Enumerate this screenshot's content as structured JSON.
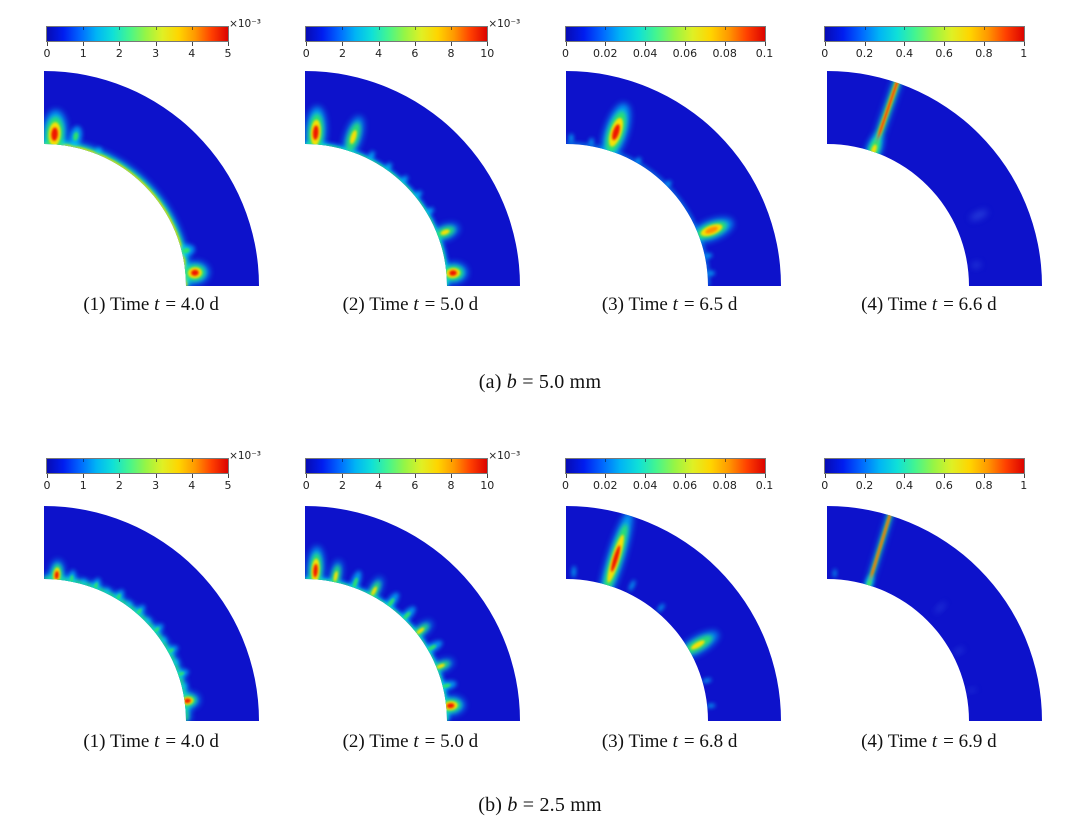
{
  "page": {
    "background": "#ffffff"
  },
  "colors": {
    "body": "#0d12cb",
    "cyan": "#00d2ff",
    "green": "#30e860",
    "yellow": "#ffe000",
    "orange": "#ff9000",
    "red": "#f01800",
    "faint": "#3d64e8",
    "colorbar_gradient": [
      "#070bb4",
      "#001df0",
      "#0066ff",
      "#00b4f5",
      "#0fe0d8",
      "#45f58e",
      "#96f545",
      "#dff025",
      "#ffd500",
      "#ff9800",
      "#ff4000",
      "#dc0300"
    ]
  },
  "figure": {
    "sections": [
      {
        "id": "a",
        "label": {
          "index": "(a)",
          "var": "b",
          "post": "= 5.0 mm"
        },
        "panels": [
          {
            "colorbar": {
              "ticks": [
                "0",
                "1",
                "2",
                "3",
                "4",
                "5"
              ],
              "exponent": "×10⁻³"
            },
            "caption": {
              "index": "(1)",
              "pre": "Time",
              "var": "t",
              "post": "= 4.0 d"
            },
            "field": {
              "rim": "strong",
              "features": [
                {
                  "t": 86,
                  "r": 0.14,
                  "l": 24,
                  "w": 12,
                  "p": "red"
                },
                {
                  "t": 78,
                  "r": 0.15,
                  "l": 14,
                  "w": 8,
                  "p": "green"
                },
                {
                  "t": 68,
                  "r": 0.05,
                  "l": 10,
                  "w": 7,
                  "p": "cyan"
                },
                {
                  "t": 14,
                  "r": 0.06,
                  "l": 12,
                  "w": 8,
                  "p": "green"
                },
                {
                  "t": 5,
                  "r": 0.13,
                  "l": 14,
                  "w": 11,
                  "p": "red"
                }
              ]
            }
          },
          {
            "colorbar": {
              "ticks": [
                "0",
                "2",
                "4",
                "6",
                "8",
                "10"
              ],
              "exponent": "×10⁻³"
            },
            "caption": {
              "index": "(2)",
              "pre": "Time",
              "var": "t",
              "post": "= 5.0 d"
            },
            "field": {
              "rim": "thin",
              "features": [
                {
                  "t": 86,
                  "r": 0.16,
                  "l": 26,
                  "w": 10,
                  "p": "red"
                },
                {
                  "t": 72,
                  "r": 0.2,
                  "l": 24,
                  "w": 9,
                  "p": "yellow"
                },
                {
                  "t": 63,
                  "r": 0.06,
                  "l": 13,
                  "w": 7,
                  "p": "cyan"
                },
                {
                  "t": 55,
                  "r": 0.05,
                  "l": 12,
                  "w": 7,
                  "p": "cyan"
                },
                {
                  "t": 47,
                  "r": 0.05,
                  "l": 12,
                  "w": 7,
                  "p": "cyan"
                },
                {
                  "t": 39,
                  "r": 0.05,
                  "l": 12,
                  "w": 7,
                  "p": "cyan"
                },
                {
                  "t": 31,
                  "r": 0.05,
                  "l": 12,
                  "w": 7,
                  "p": "cyan"
                },
                {
                  "t": 21,
                  "r": 0.11,
                  "l": 16,
                  "w": 8,
                  "p": "yellow"
                },
                {
                  "t": 5,
                  "r": 0.09,
                  "l": 14,
                  "w": 10,
                  "p": "red"
                }
              ]
            }
          },
          {
            "colorbar": {
              "ticks": [
                "0",
                "0.02",
                "0.04",
                "0.06",
                "0.08",
                "0.1"
              ]
            },
            "caption": {
              "index": "(3)",
              "pre": "Time",
              "var": "t",
              "post": "= 6.5 d"
            },
            "field": {
              "rim": "faint",
              "features": [
                {
                  "t": 72,
                  "r": 0.27,
                  "l": 30,
                  "w": 11,
                  "p": "red"
                },
                {
                  "t": 88,
                  "r": 0.08,
                  "l": 12,
                  "w": 6,
                  "p": "cyan"
                },
                {
                  "t": 80,
                  "r": 0.06,
                  "l": 10,
                  "w": 6,
                  "p": "cyan"
                },
                {
                  "t": 60,
                  "r": 0.04,
                  "l": 9,
                  "w": 6,
                  "p": "cyan"
                },
                {
                  "t": 45,
                  "r": 0.04,
                  "l": 9,
                  "w": 6,
                  "p": "cyan"
                },
                {
                  "t": 21,
                  "r": 0.19,
                  "l": 24,
                  "w": 10,
                  "p": "orange"
                },
                {
                  "t": 12,
                  "r": 0.05,
                  "l": 10,
                  "w": 6,
                  "p": "cyan"
                },
                {
                  "t": 5,
                  "r": 0.05,
                  "l": 10,
                  "w": 6,
                  "p": "cyan"
                }
              ]
            }
          },
          {
            "colorbar": {
              "ticks": [
                "0",
                "0.2",
                "0.4",
                "0.6",
                "0.8",
                "1"
              ]
            },
            "caption": {
              "index": "(4)",
              "pre": "Time",
              "var": "t",
              "post": "= 6.6 d"
            },
            "field": {
              "rim": "none",
              "features": [
                {
                  "t": 71,
                  "full": true,
                  "k": 1,
                  "p": "red"
                },
                {
                  "t": 71,
                  "r": 0.03,
                  "l": 18,
                  "w": 8,
                  "p": "yellow"
                },
                {
                  "t": 25,
                  "r": 0.35,
                  "l": 24,
                  "w": 9,
                  "p": "faint"
                },
                {
                  "t": 8,
                  "r": 0.12,
                  "l": 12,
                  "w": 7,
                  "p": "faint"
                }
              ]
            }
          }
        ]
      },
      {
        "id": "b",
        "label": {
          "index": "(b)",
          "var": "b",
          "post": "= 2.5 mm"
        },
        "panels": [
          {
            "colorbar": {
              "ticks": [
                "0",
                "1",
                "2",
                "3",
                "4",
                "5"
              ],
              "exponent": "×10⁻³"
            },
            "caption": {
              "index": "(1)",
              "pre": "Time",
              "var": "t",
              "post": "= 4.0 d"
            },
            "field": {
              "rim": "green",
              "features": [
                {
                  "t": 85,
                  "r": 0.06,
                  "l": 15,
                  "w": 7,
                  "p": "red"
                },
                {
                  "t": 79,
                  "r": 0.04,
                  "l": 12,
                  "w": 5,
                  "p": "green"
                },
                {
                  "t": 74,
                  "r": 0.03,
                  "l": 10,
                  "w": 5,
                  "p": "cyan"
                },
                {
                  "t": 69,
                  "r": 0.04,
                  "l": 11,
                  "w": 5,
                  "p": "green"
                },
                {
                  "t": 64,
                  "r": 0.03,
                  "l": 10,
                  "w": 5,
                  "p": "cyan"
                },
                {
                  "t": 59,
                  "r": 0.04,
                  "l": 11,
                  "w": 5,
                  "p": "green"
                },
                {
                  "t": 54,
                  "r": 0.03,
                  "l": 10,
                  "w": 5,
                  "p": "cyan"
                },
                {
                  "t": 49,
                  "r": 0.04,
                  "l": 11,
                  "w": 5,
                  "p": "green"
                },
                {
                  "t": 44,
                  "r": 0.03,
                  "l": 10,
                  "w": 5,
                  "p": "cyan"
                },
                {
                  "t": 39,
                  "r": 0.04,
                  "l": 11,
                  "w": 5,
                  "p": "green"
                },
                {
                  "t": 34,
                  "r": 0.03,
                  "l": 10,
                  "w": 5,
                  "p": "cyan"
                },
                {
                  "t": 29,
                  "r": 0.04,
                  "l": 11,
                  "w": 5,
                  "p": "green"
                },
                {
                  "t": 24,
                  "r": 0.03,
                  "l": 10,
                  "w": 5,
                  "p": "cyan"
                },
                {
                  "t": 19,
                  "r": 0.04,
                  "l": 11,
                  "w": 5,
                  "p": "green"
                },
                {
                  "t": 14,
                  "r": 0.03,
                  "l": 10,
                  "w": 5,
                  "p": "cyan"
                },
                {
                  "t": 8,
                  "r": 0.04,
                  "l": 12,
                  "w": 8,
                  "p": "red"
                }
              ]
            }
          },
          {
            "colorbar": {
              "ticks": [
                "0",
                "2",
                "4",
                "6",
                "8",
                "10"
              ],
              "exponent": "×10⁻³"
            },
            "caption": {
              "index": "(2)",
              "pre": "Time",
              "var": "t",
              "post": "= 5.0 d"
            },
            "field": {
              "rim": "thin",
              "features": [
                {
                  "t": 86,
                  "r": 0.12,
                  "l": 24,
                  "w": 8,
                  "p": "red"
                },
                {
                  "t": 78,
                  "r": 0.08,
                  "l": 18,
                  "w": 6,
                  "p": "yellow"
                },
                {
                  "t": 70,
                  "r": 0.07,
                  "l": 17,
                  "w": 6,
                  "p": "green"
                },
                {
                  "t": 62,
                  "r": 0.07,
                  "l": 17,
                  "w": 6,
                  "p": "yellow"
                },
                {
                  "t": 54,
                  "r": 0.06,
                  "l": 16,
                  "w": 6,
                  "p": "green"
                },
                {
                  "t": 46,
                  "r": 0.06,
                  "l": 16,
                  "w": 6,
                  "p": "green"
                },
                {
                  "t": 38,
                  "r": 0.06,
                  "l": 16,
                  "w": 6,
                  "p": "yellow"
                },
                {
                  "t": 30,
                  "r": 0.06,
                  "l": 16,
                  "w": 6,
                  "p": "green"
                },
                {
                  "t": 22,
                  "r": 0.06,
                  "l": 15,
                  "w": 6,
                  "p": "yellow"
                },
                {
                  "t": 14,
                  "r": 0.05,
                  "l": 14,
                  "w": 6,
                  "p": "green"
                },
                {
                  "t": 6,
                  "r": 0.06,
                  "l": 14,
                  "w": 9,
                  "p": "red"
                }
              ]
            }
          },
          {
            "colorbar": {
              "ticks": [
                "0",
                "0.02",
                "0.04",
                "0.06",
                "0.08",
                "0.1"
              ]
            },
            "caption": {
              "index": "(3)",
              "pre": "Time",
              "var": "t",
              "post": "= 6.8 d"
            },
            "field": {
              "rim": "none",
              "features": [
                {
                  "t": 73,
                  "r": 0.38,
                  "l": 50,
                  "w": 8,
                  "p": "red"
                },
                {
                  "t": 87,
                  "r": 0.1,
                  "l": 16,
                  "w": 5,
                  "p": "cyan"
                },
                {
                  "t": 64,
                  "r": 0.12,
                  "l": 16,
                  "w": 5,
                  "p": "cyan"
                },
                {
                  "t": 50,
                  "r": 0.08,
                  "l": 13,
                  "w": 5,
                  "p": "cyan"
                },
                {
                  "t": 30,
                  "r": 0.14,
                  "l": 26,
                  "w": 9,
                  "p": "yellow"
                },
                {
                  "t": 16,
                  "r": 0.06,
                  "l": 13,
                  "w": 5,
                  "p": "cyan"
                },
                {
                  "t": 6,
                  "r": 0.05,
                  "l": 12,
                  "w": 5,
                  "p": "cyan"
                }
              ]
            }
          },
          {
            "colorbar": {
              "ticks": [
                "0",
                "0.2",
                "0.4",
                "0.6",
                "0.8",
                "1"
              ]
            },
            "caption": {
              "index": "(4)",
              "pre": "Time",
              "var": "t",
              "post": "= 6.9 d"
            },
            "field": {
              "rim": "none",
              "features": [
                {
                  "t": 73,
                  "full": true,
                  "k": 0.62,
                  "p": "red"
                },
                {
                  "t": 73,
                  "r": 0.02,
                  "l": 12,
                  "w": 5,
                  "p": "green"
                },
                {
                  "t": 87,
                  "r": 0.08,
                  "l": 12,
                  "w": 4,
                  "p": "cyan"
                },
                {
                  "t": 45,
                  "r": 0.25,
                  "l": 18,
                  "w": 5,
                  "p": "faint"
                },
                {
                  "t": 28,
                  "r": 0.1,
                  "l": 14,
                  "w": 5,
                  "p": "faint"
                },
                {
                  "t": 12,
                  "r": 0.08,
                  "l": 12,
                  "w": 4,
                  "p": "faint"
                }
              ]
            }
          }
        ]
      }
    ]
  },
  "chart_data": {
    "type": "heatmap",
    "geometry": "quarter-annulus",
    "colormap": "jet",
    "legend_position": "top",
    "sections": [
      {
        "label": "(a) b = 5.0 mm",
        "b_mm": 5.0,
        "panels": [
          {
            "time_d": 4.0,
            "colorbar_range": [
              0,
              0.005
            ],
            "colorbar_ticks": [
              0,
              1,
              2,
              3,
              4,
              5
            ],
            "tick_scale": "1e-3"
          },
          {
            "time_d": 5.0,
            "colorbar_range": [
              0,
              0.01
            ],
            "colorbar_ticks": [
              0,
              2,
              4,
              6,
              8,
              10
            ],
            "tick_scale": "1e-3"
          },
          {
            "time_d": 6.5,
            "colorbar_range": [
              0,
              0.1
            ],
            "colorbar_ticks": [
              0,
              0.02,
              0.04,
              0.06,
              0.08,
              0.1
            ]
          },
          {
            "time_d": 6.6,
            "colorbar_range": [
              0,
              1
            ],
            "colorbar_ticks": [
              0,
              0.2,
              0.4,
              0.6,
              0.8,
              1
            ]
          }
        ]
      },
      {
        "label": "(b) b = 2.5 mm",
        "b_mm": 2.5,
        "panels": [
          {
            "time_d": 4.0,
            "colorbar_range": [
              0,
              0.005
            ],
            "colorbar_ticks": [
              0,
              1,
              2,
              3,
              4,
              5
            ],
            "tick_scale": "1e-3"
          },
          {
            "time_d": 5.0,
            "colorbar_range": [
              0,
              0.01
            ],
            "colorbar_ticks": [
              0,
              2,
              4,
              6,
              8,
              10
            ],
            "tick_scale": "1e-3"
          },
          {
            "time_d": 6.8,
            "colorbar_range": [
              0,
              0.1
            ],
            "colorbar_ticks": [
              0,
              0.02,
              0.04,
              0.06,
              0.08,
              0.1
            ]
          },
          {
            "time_d": 6.9,
            "colorbar_range": [
              0,
              1
            ],
            "colorbar_ticks": [
              0,
              0.2,
              0.4,
              0.6,
              0.8,
              1
            ]
          }
        ]
      }
    ]
  }
}
